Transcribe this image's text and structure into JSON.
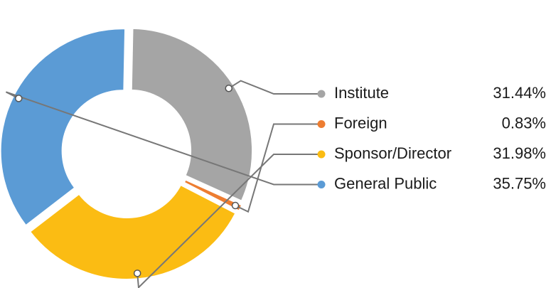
{
  "chart_data": {
    "type": "donut",
    "series": [
      {
        "name": "Institute",
        "color": "#a5a5a5",
        "values": [
          31.44
        ]
      },
      {
        "name": "Foreign",
        "color": "#ed7d31",
        "values": [
          0.83
        ]
      },
      {
        "name": "Sponsor/Director",
        "color": "#fbbc13",
        "values": [
          31.98
        ]
      },
      {
        "name": "General Public",
        "color": "#5b9bd5",
        "values": [
          35.75
        ]
      }
    ],
    "value_labels": [
      "31.44%",
      "0.83%",
      "31.98%",
      "35.75%"
    ]
  }
}
